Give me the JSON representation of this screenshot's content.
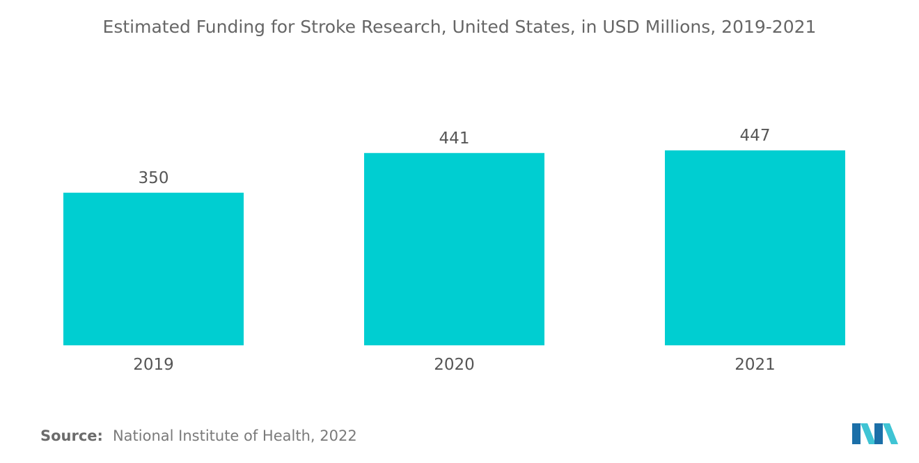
{
  "chart_data": {
    "type": "bar",
    "title": "Estimated Funding for Stroke Research, United States, in USD Millions, 2019-2021",
    "categories": [
      "2019",
      "2020",
      "2021"
    ],
    "values": [
      350,
      441,
      447
    ],
    "data_labels": [
      "350",
      "441",
      "447"
    ],
    "xlabel": "",
    "ylabel": "",
    "ylim": [
      0,
      447
    ],
    "grid": false,
    "legend": "none",
    "bar_color": "#00CED1"
  },
  "footer": {
    "source_label": "Source:",
    "source_text": "National Institute of Health, 2022"
  },
  "logo": {
    "icon": "mordor-intelligence-logo-icon",
    "color_dark": "#1B6FA8",
    "color_light": "#3FC4D4"
  }
}
